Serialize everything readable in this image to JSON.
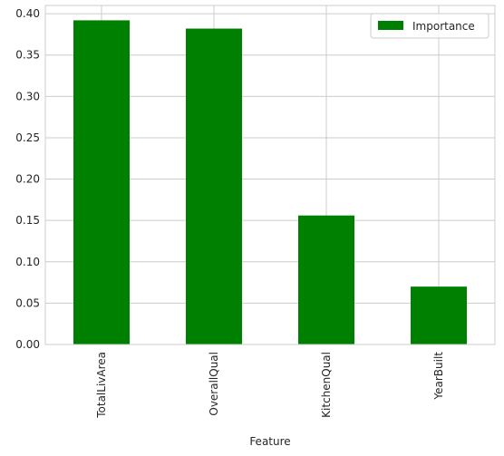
{
  "chart_data": {
    "type": "bar",
    "title": "",
    "xlabel": "Feature",
    "ylabel": "",
    "categories": [
      "TotalLivArea",
      "OverallQual",
      "KitchenQual",
      "YearBuilt"
    ],
    "series": [
      {
        "name": "Importance",
        "values": [
          0.392,
          0.382,
          0.156,
          0.07
        ]
      }
    ],
    "ylim": [
      0,
      0.41
    ],
    "yticks": [
      0.0,
      0.05,
      0.1,
      0.15,
      0.2,
      0.25,
      0.3,
      0.35,
      0.4
    ],
    "ytick_labels": [
      "0.00",
      "0.05",
      "0.10",
      "0.15",
      "0.20",
      "0.25",
      "0.30",
      "0.35",
      "0.40"
    ],
    "grid": true,
    "legend": {
      "position": "top-right",
      "entries": [
        "Importance"
      ]
    },
    "colors": {
      "bar": "#008000",
      "grid": "#cccccc",
      "axis": "#cccccc",
      "text": "#262626",
      "background": "#ffffff"
    }
  }
}
